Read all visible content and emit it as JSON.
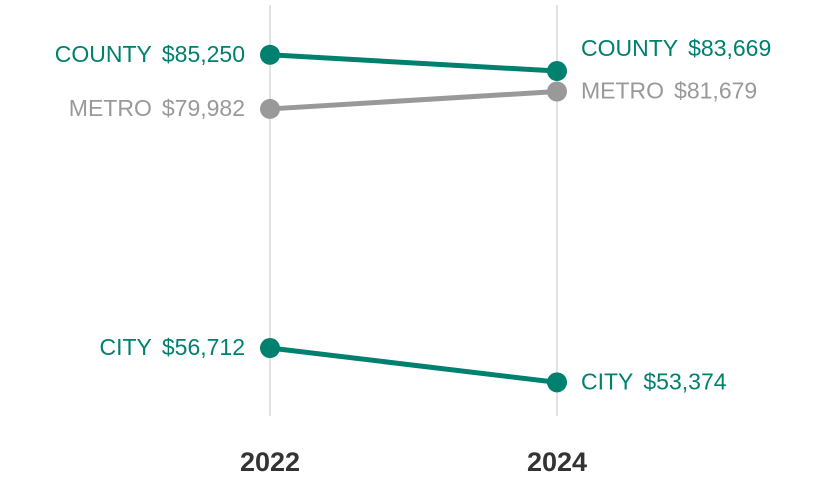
{
  "chart_data": {
    "type": "slope",
    "categories": [
      "2022",
      "2024"
    ],
    "ylim": [
      50000,
      90000
    ],
    "series": [
      {
        "name": "COUNTY",
        "color": "#00806f",
        "values": [
          85250,
          83669
        ],
        "value_labels": [
          "$85,250",
          "$83,669"
        ]
      },
      {
        "name": "METRO",
        "color": "#999999",
        "values": [
          79982,
          81679
        ],
        "value_labels": [
          "$79,982",
          "$81,679"
        ]
      },
      {
        "name": "CITY",
        "color": "#00806f",
        "values": [
          56712,
          53374
        ],
        "value_labels": [
          "$56,712",
          "$53,374"
        ]
      }
    ]
  }
}
